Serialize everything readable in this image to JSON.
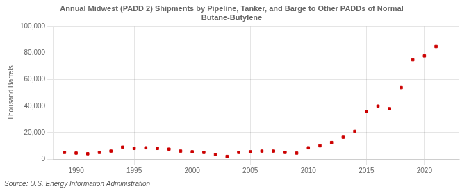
{
  "chart_data": {
    "type": "scatter",
    "title": "Annual Midwest (PADD 2) Shipments by Pipeline, Tanker, and Barge to Other PADDs of Normal\nButane-Butylene",
    "ylabel": "Thousand Barrels",
    "annotation": "Source: U.S. Energy Information Administration",
    "x": [
      1989,
      1990,
      1991,
      1992,
      1993,
      1994,
      1995,
      1996,
      1997,
      1998,
      1999,
      2000,
      2001,
      2002,
      2003,
      2004,
      2005,
      2006,
      2007,
      2008,
      2009,
      2010,
      2011,
      2012,
      2013,
      2014,
      2015,
      2016,
      2017,
      2018,
      2019,
      2020,
      2021
    ],
    "values": [
      5000,
      4500,
      4000,
      5000,
      6000,
      9000,
      8000,
      8500,
      8000,
      7500,
      6000,
      5500,
      5000,
      3500,
      2000,
      5000,
      5500,
      6000,
      6000,
      5000,
      4500,
      8500,
      10000,
      12500,
      16500,
      21000,
      36000,
      40000,
      38000,
      54000,
      75000,
      78000,
      85000
    ],
    "color": "#cc0000",
    "marker": "square",
    "xlim": [
      1988,
      2023
    ],
    "xticks": [
      1990,
      1995,
      2000,
      2005,
      2010,
      2015,
      2020
    ],
    "ylim": [
      0,
      100000
    ],
    "yticks": [
      0,
      {
        "value": 20000,
        "label": "20,000"
      },
      {
        "value": 40000,
        "label": "40,000"
      },
      {
        "value": 60000,
        "label": "60,000"
      },
      {
        "value": 80000,
        "label": "80,000"
      },
      {
        "value": 100000,
        "label": "100,000"
      }
    ],
    "grid": true
  }
}
